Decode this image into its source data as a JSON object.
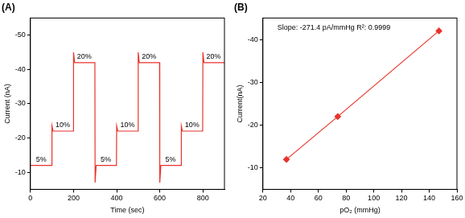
{
  "chart_data": [
    {
      "type": "line",
      "title": "(A)",
      "x_label": "Time (sec)",
      "y_label": "Current (nA)",
      "x": [
        0,
        99,
        100,
        105,
        199,
        200,
        205,
        299,
        300,
        305,
        399,
        400,
        405,
        499,
        500,
        505,
        599,
        600,
        605,
        699,
        700,
        705,
        799,
        800,
        805,
        900
      ],
      "series": [
        {
          "color": "#e8332a",
          "marker": "none",
          "line_style": "solid",
          "values": [
            -12,
            -12,
            -23.5,
            -22,
            -22,
            -45,
            -42,
            -42,
            -7,
            -12,
            -12,
            -23.5,
            -22,
            -22,
            -45,
            -42,
            -42,
            -7,
            -12,
            -12,
            -23.5,
            -22,
            -22,
            -45,
            -42,
            -42
          ]
        }
      ],
      "xlim": [
        0,
        900
      ],
      "xticks": [
        0,
        200,
        400,
        600,
        800
      ],
      "ylim": [
        -5,
        -55
      ],
      "yticks": [
        -50,
        -40,
        -30,
        -20,
        -10
      ],
      "grid": false,
      "annotations": [
        {
          "text": "5%",
          "x": 50,
          "y": -12
        },
        {
          "text": "10%",
          "x": 150,
          "y": -22
        },
        {
          "text": "20%",
          "x": 250,
          "y": -42
        },
        {
          "text": "5%",
          "x": 350,
          "y": -12
        },
        {
          "text": "10%",
          "x": 450,
          "y": -22
        },
        {
          "text": "20%",
          "x": 550,
          "y": -42
        },
        {
          "text": "5%",
          "x": 650,
          "y": -12
        },
        {
          "text": "10%",
          "x": 750,
          "y": -22
        },
        {
          "text": "20%",
          "x": 850,
          "y": -42
        }
      ]
    },
    {
      "type": "line",
      "title": "(B)",
      "x_label": "pO₂ (mmHg)",
      "y_label": "Current(nA)",
      "x": [
        37,
        74,
        147
      ],
      "series": [
        {
          "color": "#e8332a",
          "marker": "diamond",
          "line_style": "solid",
          "values": [
            -12,
            -22,
            -42
          ]
        }
      ],
      "xlim": [
        20,
        160
      ],
      "xticks": [
        20,
        40,
        60,
        80,
        100,
        120,
        140,
        160
      ],
      "ylim": [
        -5,
        -45
      ],
      "yticks": [
        -40,
        -30,
        -20,
        -10
      ],
      "grid": false,
      "annotations": [
        {
          "text": "Slope: -271.4 pA/mmHg R²: 0.9999"
        }
      ]
    }
  ]
}
